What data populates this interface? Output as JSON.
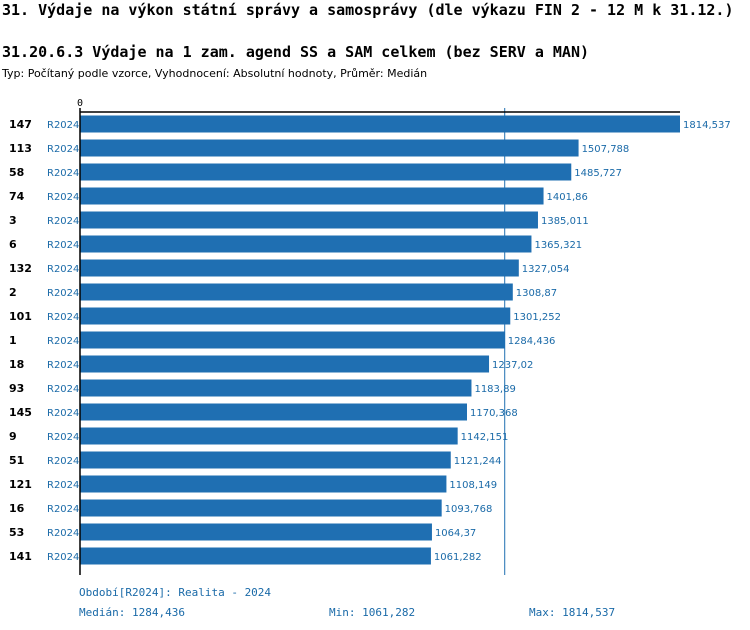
{
  "header": {
    "title": "31. Výdaje na výkon státní správy a samosprávy (dle výkazu FIN 2 - 12 M k 31.12.)",
    "subtitle": "31.20.6.3 Výdaje na 1 zam. agend SS a SAM celkem (bez SERV a MAN)",
    "meta": "Typ: Počítaný podle vzorce, Vyhodnocení: Absolutní hodnoty, Průměr: Medián"
  },
  "chart_data": {
    "type": "bar",
    "orientation": "horizontal",
    "axis_zero_label": "0",
    "xlim": [
      0,
      1814.537
    ],
    "colors": {
      "bar": "#1f6fb2",
      "label": "#1a6aa8",
      "median_line": "#1f6fb2"
    },
    "median_value": 1284.436,
    "rows": [
      {
        "rank": "147",
        "period": "R2024",
        "value": 1814.537,
        "value_label": "1814,537"
      },
      {
        "rank": "113",
        "period": "R2024",
        "value": 1507.788,
        "value_label": "1507,788"
      },
      {
        "rank": "58",
        "period": "R2024",
        "value": 1485.727,
        "value_label": "1485,727"
      },
      {
        "rank": "74",
        "period": "R2024",
        "value": 1401.86,
        "value_label": "1401,86"
      },
      {
        "rank": "3",
        "period": "R2024",
        "value": 1385.011,
        "value_label": "1385,011"
      },
      {
        "rank": "6",
        "period": "R2024",
        "value": 1365.321,
        "value_label": "1365,321"
      },
      {
        "rank": "132",
        "period": "R2024",
        "value": 1327.054,
        "value_label": "1327,054"
      },
      {
        "rank": "2",
        "period": "R2024",
        "value": 1308.87,
        "value_label": "1308,87"
      },
      {
        "rank": "101",
        "period": "R2024",
        "value": 1301.252,
        "value_label": "1301,252"
      },
      {
        "rank": "1",
        "period": "R2024",
        "value": 1284.436,
        "value_label": "1284,436"
      },
      {
        "rank": "18",
        "period": "R2024",
        "value": 1237.02,
        "value_label": "1237,02"
      },
      {
        "rank": "93",
        "period": "R2024",
        "value": 1183.89,
        "value_label": "1183,89"
      },
      {
        "rank": "145",
        "period": "R2024",
        "value": 1170.368,
        "value_label": "1170,368"
      },
      {
        "rank": "9",
        "period": "R2024",
        "value": 1142.151,
        "value_label": "1142,151"
      },
      {
        "rank": "51",
        "period": "R2024",
        "value": 1121.244,
        "value_label": "1121,244"
      },
      {
        "rank": "121",
        "period": "R2024",
        "value": 1108.149,
        "value_label": "1108,149"
      },
      {
        "rank": "16",
        "period": "R2024",
        "value": 1093.768,
        "value_label": "1093,768"
      },
      {
        "rank": "53",
        "period": "R2024",
        "value": 1064.37,
        "value_label": "1064,37"
      },
      {
        "rank": "141",
        "period": "R2024",
        "value": 1061.282,
        "value_label": "1061,282"
      }
    ]
  },
  "footer": {
    "period": "Období[R2024]: Realita - 2024",
    "median": "Medián: 1284,436",
    "min": "Min: 1061,282",
    "max": "Max: 1814,537"
  }
}
